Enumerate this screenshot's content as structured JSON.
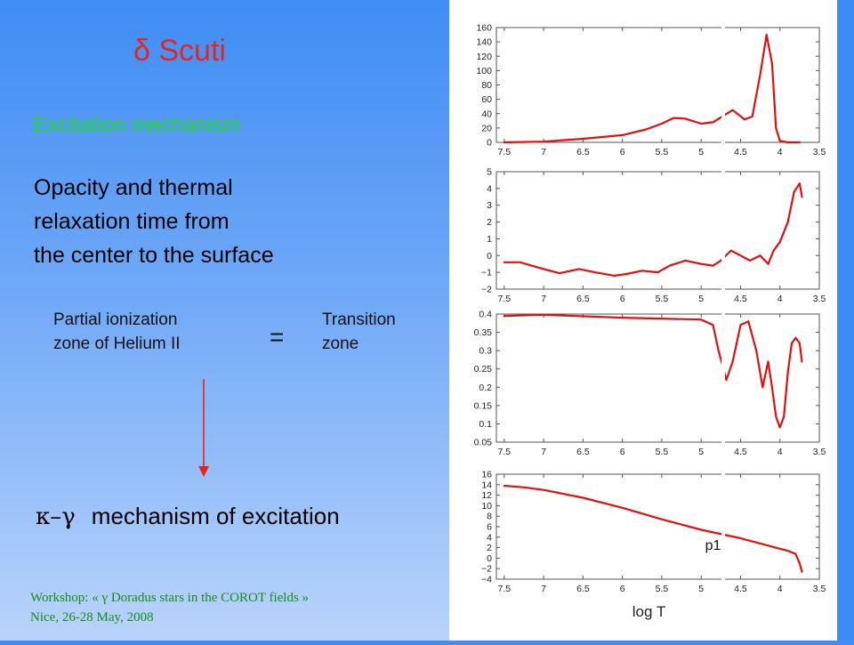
{
  "slide": {
    "title": "δ Scuti",
    "subtitle": "Excitation mechanism",
    "description_lines": [
      "Opacity and thermal",
      "relaxation time from",
      "the center to the surface"
    ],
    "partial_ionization_lines": [
      "Partial ionization",
      "zone of Helium II"
    ],
    "equals": "=",
    "transition_lines": [
      "Transition",
      "zone"
    ],
    "mechanism_symbol": "κ–γ",
    "mechanism_text": "mechanism of excitation",
    "footer_lines": [
      "Workshop: « γ Doradus stars in the COROT fields »",
      "Nice, 26-28 May, 2008"
    ],
    "colors": {
      "title": "#e8241e",
      "subtitle": "#26d926",
      "arrow": "#e8241e",
      "curve": "#e01010",
      "footer": "#198c1a"
    }
  },
  "chart_data": [
    {
      "type": "line",
      "x_reversed": true,
      "xlim": [
        7.6,
        3.5
      ],
      "xticks": [
        "7.5",
        "7",
        "6.5",
        "6",
        "5.5",
        "5",
        "4.5",
        "4",
        "3.5"
      ],
      "ylim": [
        0,
        160
      ],
      "yticks": [
        "160",
        "140",
        "120",
        "100",
        "80",
        "60",
        "40",
        "20",
        "0"
      ],
      "series": [
        {
          "x": [
            7.5,
            7.0,
            6.5,
            6.0,
            5.7,
            5.5,
            5.35,
            5.2,
            5.0,
            4.85,
            4.6,
            4.45,
            4.35,
            4.25,
            4.17,
            4.1,
            4.05,
            4.0,
            3.9,
            3.75
          ],
          "y": [
            0,
            1,
            5,
            10,
            18,
            26,
            34,
            33,
            26,
            28,
            45,
            32,
            36,
            95,
            150,
            110,
            20,
            2,
            0,
            0
          ]
        }
      ]
    },
    {
      "type": "line",
      "x_reversed": true,
      "xlim": [
        7.6,
        3.5
      ],
      "xticks": [
        "7.5",
        "7",
        "6.5",
        "6",
        "5.5",
        "5",
        "4.5",
        "4",
        "3.5"
      ],
      "ylim": [
        -2,
        5
      ],
      "yticks": [
        "5",
        "4",
        "3",
        "2",
        "1",
        "0",
        "−1",
        "−2"
      ],
      "series": [
        {
          "x": [
            7.5,
            7.3,
            7.0,
            6.8,
            6.55,
            6.35,
            6.1,
            5.95,
            5.75,
            5.55,
            5.4,
            5.2,
            5.0,
            4.85,
            4.75,
            4.62,
            4.5,
            4.38,
            4.25,
            4.15,
            4.08,
            4.0,
            3.9,
            3.82,
            3.75,
            3.72
          ],
          "y": [
            -0.4,
            -0.4,
            -0.8,
            -1.05,
            -0.8,
            -1.0,
            -1.2,
            -1.1,
            -0.9,
            -1.0,
            -0.6,
            -0.3,
            -0.5,
            -0.6,
            -0.3,
            0.3,
            0.0,
            -0.3,
            0.0,
            -0.5,
            0.3,
            0.8,
            2.0,
            3.8,
            4.3,
            3.5
          ]
        }
      ]
    },
    {
      "type": "line",
      "x_reversed": true,
      "xlim": [
        7.6,
        3.5
      ],
      "xticks": [
        "7.5",
        "7",
        "6.5",
        "6",
        "5.5",
        "5",
        "4.5",
        "4",
        "3.5"
      ],
      "ylim": [
        0.05,
        0.4
      ],
      "yticks": [
        "0.4",
        "0.35",
        "0.3",
        "0.25",
        "0.2",
        "0.15",
        "0.1",
        "0.05"
      ],
      "series": [
        {
          "x": [
            7.5,
            7.0,
            6.0,
            5.0,
            4.85,
            4.78,
            4.68,
            4.6,
            4.5,
            4.4,
            4.3,
            4.22,
            4.15,
            4.1,
            4.05,
            4.0,
            3.95,
            3.9,
            3.85,
            3.8,
            3.75,
            3.72
          ],
          "y": [
            0.395,
            0.398,
            0.39,
            0.385,
            0.37,
            0.3,
            0.22,
            0.27,
            0.37,
            0.38,
            0.3,
            0.2,
            0.27,
            0.2,
            0.12,
            0.09,
            0.12,
            0.24,
            0.32,
            0.335,
            0.32,
            0.27
          ]
        }
      ]
    },
    {
      "type": "line",
      "x_reversed": true,
      "xlim": [
        7.6,
        3.5
      ],
      "xticks": [
        "7.5",
        "7",
        "6.5",
        "6",
        "5.5",
        "5",
        "4.5",
        "4",
        "3.5"
      ],
      "xlabel": "log T",
      "ylim": [
        -4,
        16
      ],
      "yticks": [
        "16",
        "14",
        "12",
        "10",
        "8",
        "6",
        "4",
        "2",
        "0",
        "−2",
        "−4"
      ],
      "annotation": "p1",
      "series": [
        {
          "x": [
            7.5,
            7.25,
            7.0,
            6.5,
            6.0,
            5.5,
            5.0,
            4.5,
            4.2,
            4.0,
            3.9,
            3.8,
            3.75,
            3.72
          ],
          "y": [
            13.8,
            13.5,
            13.0,
            11.5,
            9.6,
            7.4,
            5.4,
            3.8,
            2.6,
            1.8,
            1.4,
            0.8,
            -1.0,
            -2.6
          ]
        }
      ]
    }
  ]
}
